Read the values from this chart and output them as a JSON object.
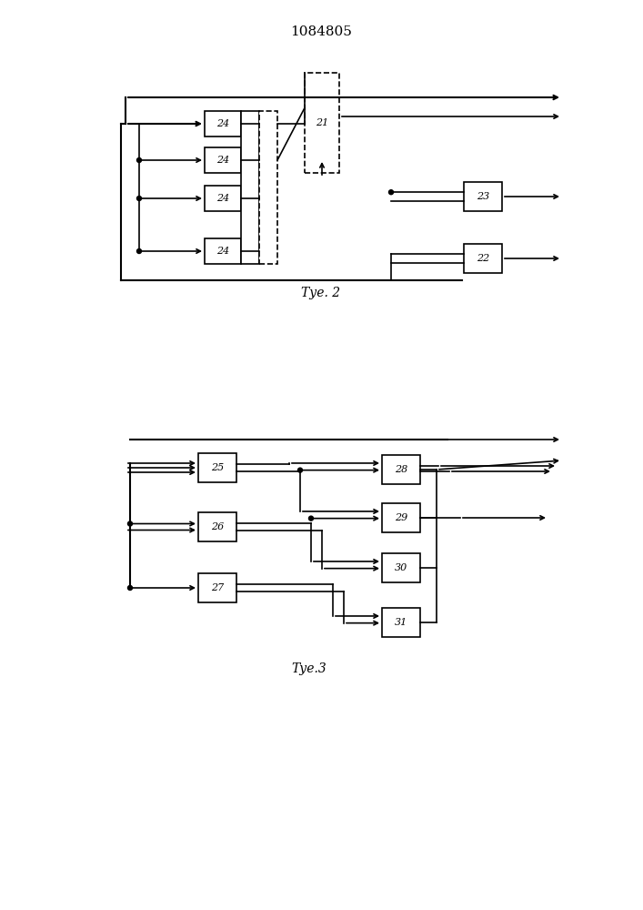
{
  "title": "1084805",
  "fig2_label": "Τуе. 2",
  "fig3_label": "Τуе.3",
  "bg_color": "#ffffff",
  "line_color": "#000000"
}
